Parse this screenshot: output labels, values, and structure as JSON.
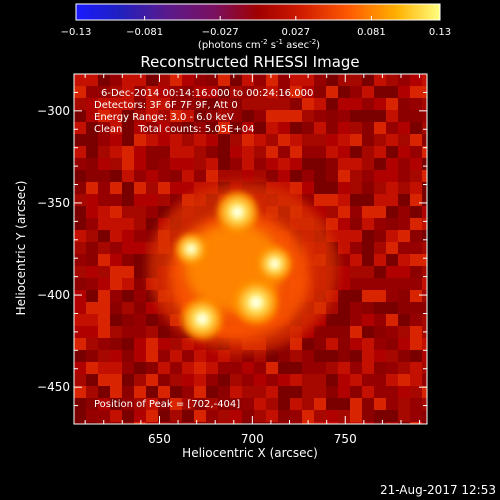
{
  "chart_data": {
    "type": "heatmap",
    "title": "Reconstructed RHESSI Image",
    "xlabel": "Heliocentric X (arcsec)",
    "ylabel": "Heliocentric Y (arcsec)",
    "xlim": [
      604,
      794
    ],
    "ylim": [
      -470,
      -280
    ],
    "x_ticks": [
      650,
      700,
      750
    ],
    "y_ticks": [
      -300,
      -350,
      -400,
      -450
    ],
    "colorbar": {
      "label": "(photons cm",
      "label_sup1": "-2",
      "label_mid1": " s",
      "label_sup2": "-1",
      "label_mid2": " asec",
      "label_sup3": "-2",
      "label_end": ")",
      "range": [
        -0.13,
        0.13
      ],
      "tick_labels": [
        "-0.13",
        "-0.081",
        "-0.027",
        "0.027",
        "0.081",
        "0.13"
      ],
      "colormap": "rainbow-hot: blue, purple, red, orange, yellow, white"
    },
    "info_lines": [
      "6-Dec-2014 00:14:16.000 to 00:24:16.000",
      "Detectors: 3F 6F 7F 9F, Att 0",
      "Energy Range: 3.0 - 6.0 keV",
      "Clean     Total counts: 5.05E+04"
    ],
    "peak_label": "Position of Peak = [702,-404]",
    "sources": [
      {
        "x": 692,
        "y": -355,
        "intensity": 0.12
      },
      {
        "x": 667,
        "y": -375,
        "intensity": 0.09
      },
      {
        "x": 712,
        "y": -383,
        "intensity": 0.1
      },
      {
        "x": 702,
        "y": -404,
        "intensity": 0.13
      },
      {
        "x": 673,
        "y": -413,
        "intensity": 0.12
      }
    ]
  },
  "timestamp": "21-Aug-2017 12:53",
  "colors": {
    "background": "#000000",
    "foreground": "#ffffff"
  }
}
